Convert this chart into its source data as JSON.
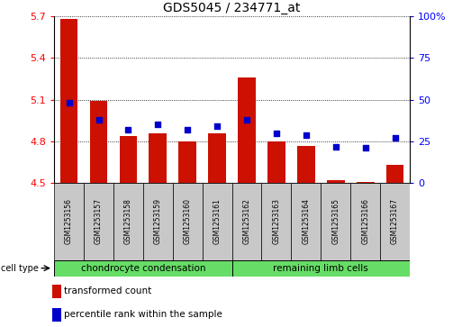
{
  "title": "GDS5045 / 234771_at",
  "samples": [
    "GSM1253156",
    "GSM1253157",
    "GSM1253158",
    "GSM1253159",
    "GSM1253160",
    "GSM1253161",
    "GSM1253162",
    "GSM1253163",
    "GSM1253164",
    "GSM1253165",
    "GSM1253166",
    "GSM1253167"
  ],
  "red_values": [
    5.68,
    5.09,
    4.84,
    4.86,
    4.8,
    4.86,
    5.26,
    4.8,
    4.77,
    4.52,
    4.51,
    4.63
  ],
  "blue_values": [
    48,
    38,
    32,
    35,
    32,
    34,
    38,
    30,
    29,
    22,
    21,
    27
  ],
  "ylim_left": [
    4.5,
    5.7
  ],
  "ylim_right": [
    0,
    100
  ],
  "yticks_left": [
    4.5,
    4.8,
    5.1,
    5.4,
    5.7
  ],
  "yticks_right": [
    0,
    25,
    50,
    75,
    100
  ],
  "ytick_labels_right": [
    "0",
    "25",
    "50",
    "75",
    "100%"
  ],
  "ytick_labels_left": [
    "4.5",
    "4.8",
    "5.1",
    "5.4",
    "5.7"
  ],
  "cell_type_label": "cell type",
  "legend_red": "transformed count",
  "legend_blue": "percentile rank within the sample",
  "bar_color": "#cc1100",
  "dot_color": "#0000cc",
  "bar_width": 0.6,
  "group_bg": "#c8c8c8",
  "green_color": "#66dd66",
  "group_defs": [
    [
      0,
      6,
      "chondrocyte condensation"
    ],
    [
      6,
      12,
      "remaining limb cells"
    ]
  ]
}
